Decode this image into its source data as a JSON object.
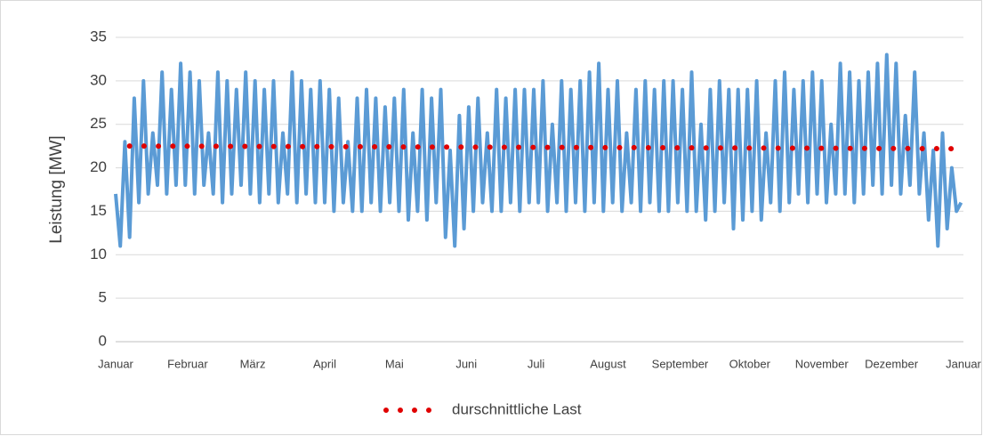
{
  "chart_data": {
    "type": "line",
    "ylabel": "Leistung [MW]",
    "xlim": [
      0,
      365
    ],
    "xticks": [
      {
        "value": 0,
        "label": "Januar"
      },
      {
        "value": 31,
        "label": "Februar"
      },
      {
        "value": 59,
        "label": "März"
      },
      {
        "value": 90,
        "label": "April"
      },
      {
        "value": 120,
        "label": "Mai"
      },
      {
        "value": 151,
        "label": "Juni"
      },
      {
        "value": 181,
        "label": "Juli"
      },
      {
        "value": 212,
        "label": "August"
      },
      {
        "value": 243,
        "label": "September"
      },
      {
        "value": 273,
        "label": "Oktober"
      },
      {
        "value": 304,
        "label": "November"
      },
      {
        "value": 334,
        "label": "Dezember"
      },
      {
        "value": 365,
        "label": "Januar"
      }
    ],
    "ylim": [
      0,
      35
    ],
    "yticks": [
      0,
      5,
      10,
      15,
      20,
      25,
      30,
      35
    ],
    "grid": true,
    "legend": "bottom",
    "series": [
      {
        "color": "#5b9bd5",
        "style": "solid",
        "x": [
          0,
          2,
          4,
          6,
          8,
          10,
          12,
          14,
          16,
          18,
          20,
          22,
          24,
          26,
          28,
          30,
          32,
          34,
          36,
          38,
          40,
          42,
          44,
          46,
          48,
          50,
          52,
          54,
          56,
          58,
          60,
          62,
          64,
          66,
          68,
          70,
          72,
          74,
          76,
          78,
          80,
          82,
          84,
          86,
          88,
          90,
          92,
          94,
          96,
          98,
          100,
          102,
          104,
          106,
          108,
          110,
          112,
          114,
          116,
          118,
          120,
          122,
          124,
          126,
          128,
          130,
          132,
          134,
          136,
          138,
          140,
          142,
          144,
          146,
          148,
          150,
          152,
          154,
          156,
          158,
          160,
          162,
          164,
          166,
          168,
          170,
          172,
          174,
          176,
          178,
          180,
          182,
          184,
          186,
          188,
          190,
          192,
          194,
          196,
          198,
          200,
          202,
          204,
          206,
          208,
          210,
          212,
          214,
          216,
          218,
          220,
          222,
          224,
          226,
          228,
          230,
          232,
          234,
          236,
          238,
          240,
          242,
          244,
          246,
          248,
          250,
          252,
          254,
          256,
          258,
          260,
          262,
          264,
          266,
          268,
          270,
          272,
          274,
          276,
          278,
          280,
          282,
          284,
          286,
          288,
          290,
          292,
          294,
          296,
          298,
          300,
          302,
          304,
          306,
          308,
          310,
          312,
          314,
          316,
          318,
          320,
          322,
          324,
          326,
          328,
          330,
          332,
          334,
          336,
          338,
          340,
          342,
          344,
          346,
          348,
          350,
          352,
          354,
          356,
          358,
          360,
          362,
          364
        ],
        "values": [
          17,
          11,
          23,
          12,
          28,
          16,
          30,
          17,
          24,
          18,
          31,
          17,
          29,
          18,
          32,
          18,
          31,
          17,
          30,
          18,
          24,
          17,
          31,
          16,
          30,
          17,
          29,
          18,
          31,
          17,
          30,
          16,
          29,
          17,
          30,
          16,
          24,
          17,
          31,
          16,
          30,
          17,
          29,
          16,
          30,
          16,
          29,
          15,
          28,
          16,
          23,
          15,
          28,
          15,
          29,
          16,
          28,
          15,
          27,
          16,
          28,
          15,
          29,
          14,
          24,
          15,
          29,
          14,
          28,
          16,
          29,
          12,
          22,
          11,
          26,
          13,
          27,
          15,
          28,
          16,
          24,
          15,
          29,
          15,
          28,
          16,
          29,
          15,
          29,
          16,
          29,
          16,
          30,
          15,
          25,
          16,
          30,
          15,
          29,
          16,
          30,
          15,
          31,
          16,
          32,
          15,
          29,
          16,
          30,
          15,
          24,
          16,
          29,
          15,
          30,
          16,
          29,
          15,
          30,
          15,
          30,
          16,
          29,
          15,
          31,
          15,
          25,
          14,
          29,
          15,
          30,
          16,
          29,
          13,
          29,
          14,
          29,
          15,
          30,
          14,
          24,
          16,
          30,
          15,
          31,
          16,
          29,
          17,
          30,
          16,
          31,
          17,
          30,
          16,
          25,
          17,
          32,
          17,
          31,
          16,
          30,
          17,
          31,
          18,
          32,
          17,
          33,
          18,
          32,
          17,
          26,
          18,
          31,
          17,
          24,
          14,
          22,
          11,
          24,
          13,
          20,
          15,
          16
        ]
      },
      {
        "name": "durschnittliche Last",
        "color": "#e00000",
        "style": "dotted",
        "x": [
          6,
          362
        ],
        "values": [
          22.5,
          22.2
        ]
      }
    ]
  }
}
